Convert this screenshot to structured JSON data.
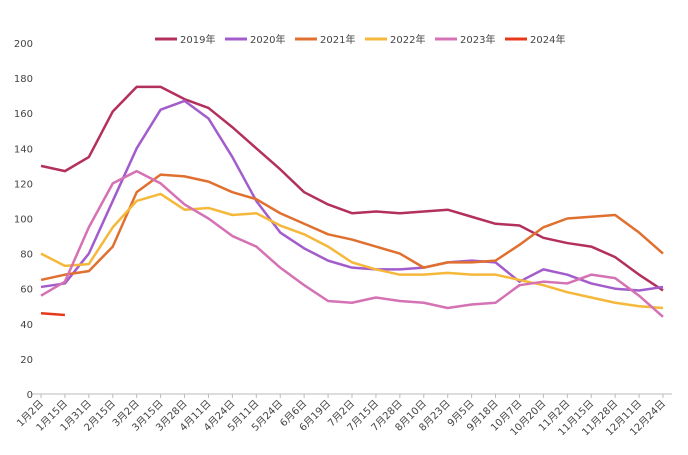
{
  "chart_data": {
    "type": "line",
    "categories": [
      "1月2日",
      "1月15日",
      "1月31日",
      "2月15日",
      "3月2日",
      "3月15日",
      "3月28日",
      "4月11日",
      "4月24日",
      "5月11日",
      "5月24日",
      "6月6日",
      "6月19日",
      "7月2日",
      "7月15日",
      "7月28日",
      "8月10日",
      "8月23日",
      "9月5日",
      "9月18日",
      "10月7日",
      "10月20日",
      "11月2日",
      "11月15日",
      "11月28日",
      "12月11日",
      "12月24日"
    ],
    "series": [
      {
        "name": "2019年",
        "color": "#b3305e",
        "values": [
          130,
          127,
          135,
          161,
          175,
          175,
          168,
          163,
          152,
          140,
          128,
          115,
          108,
          103,
          104,
          103,
          104,
          105,
          101,
          97,
          96,
          89,
          86,
          84,
          78,
          68,
          59
        ]
      },
      {
        "name": "2020年",
        "color": "#a25ccb",
        "values": [
          61,
          63,
          80,
          110,
          140,
          162,
          167,
          157,
          135,
          110,
          92,
          83,
          76,
          72,
          71,
          71,
          72,
          75,
          76,
          75,
          64,
          71,
          68,
          63,
          60,
          59,
          61
        ]
      },
      {
        "name": "2021年",
        "color": "#e07030",
        "values": [
          65,
          68,
          70,
          84,
          115,
          125,
          124,
          121,
          115,
          111,
          103,
          97,
          91,
          88,
          84,
          80,
          72,
          75,
          75,
          76,
          85,
          95,
          100,
          101,
          102,
          92,
          80
        ]
      },
      {
        "name": "2022年",
        "color": "#f5b83a",
        "values": [
          80,
          73,
          74,
          95,
          110,
          114,
          105,
          106,
          102,
          103,
          96,
          91,
          84,
          75,
          71,
          68,
          68,
          69,
          68,
          68,
          65,
          62,
          58,
          55,
          52,
          50,
          49
        ]
      },
      {
        "name": "2023年",
        "color": "#d472b4",
        "values": [
          56,
          64,
          95,
          120,
          127,
          120,
          108,
          100,
          90,
          84,
          72,
          62,
          53,
          52,
          55,
          53,
          52,
          49,
          51,
          52,
          62,
          64,
          63,
          68,
          66,
          56,
          44
        ]
      },
      {
        "name": "2024年",
        "color": "#e8381a",
        "values": [
          46,
          45,
          null,
          null,
          null,
          null,
          null,
          null,
          null,
          null,
          null,
          null,
          null,
          null,
          null,
          null,
          null,
          null,
          null,
          null,
          null,
          null,
          null,
          null,
          null,
          null,
          null
        ]
      }
    ],
    "ylim": [
      0,
      200
    ],
    "yticks": [
      0,
      20,
      40,
      60,
      80,
      100,
      120,
      140,
      160,
      180,
      200
    ],
    "grid": false,
    "legend": "top"
  }
}
